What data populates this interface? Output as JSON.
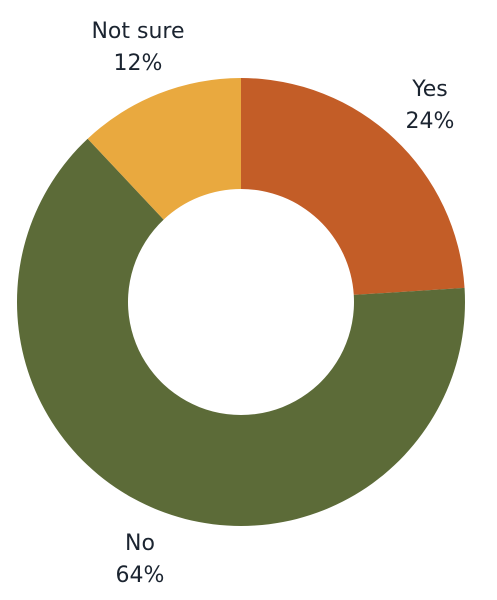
{
  "chart_data": {
    "type": "pie",
    "donut": true,
    "start_angle_deg": 0,
    "direction": "clockwise",
    "slices": [
      {
        "label": "Yes",
        "percent_label": "24%",
        "value": 24,
        "color": "#c35d27"
      },
      {
        "label": "No",
        "percent_label": "64%",
        "value": 64,
        "color": "#5c6b38"
      },
      {
        "label": "Not sure",
        "percent_label": "12%",
        "value": 12,
        "color": "#e9a93f"
      }
    ]
  }
}
